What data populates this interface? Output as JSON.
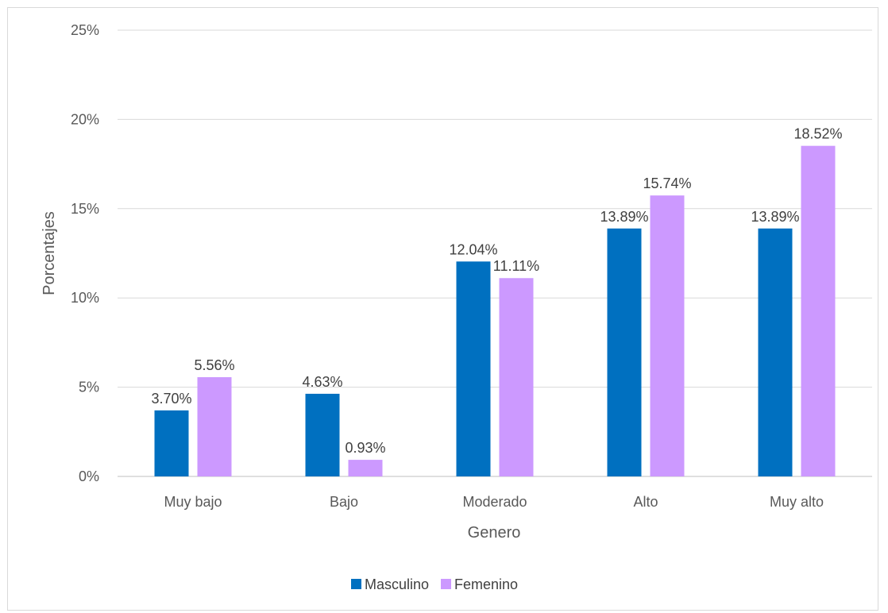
{
  "chart_data": {
    "type": "bar",
    "title": "",
    "xlabel": "Genero",
    "ylabel": "Porcentajes",
    "ylim": [
      0,
      25
    ],
    "yticks": [
      "0%",
      "5%",
      "10%",
      "15%",
      "20%",
      "25%"
    ],
    "grid": true,
    "legend_position": "bottom",
    "categories": [
      "Muy bajo",
      "Bajo",
      "Moderado",
      "Alto",
      "Muy alto"
    ],
    "series": [
      {
        "name": "Masculino",
        "color": "#0070c0",
        "values": [
          3.7,
          4.63,
          12.04,
          13.89,
          13.89
        ],
        "labels": [
          "3.70%",
          "4.63%",
          "12.04%",
          "13.89%",
          "13.89%"
        ]
      },
      {
        "name": "Femenino",
        "color": "#cc99ff",
        "values": [
          5.56,
          0.93,
          11.11,
          15.74,
          18.52
        ],
        "labels": [
          "5.56%",
          "0.93%",
          "11.11%",
          "15.74%",
          "18.52%"
        ]
      }
    ]
  }
}
